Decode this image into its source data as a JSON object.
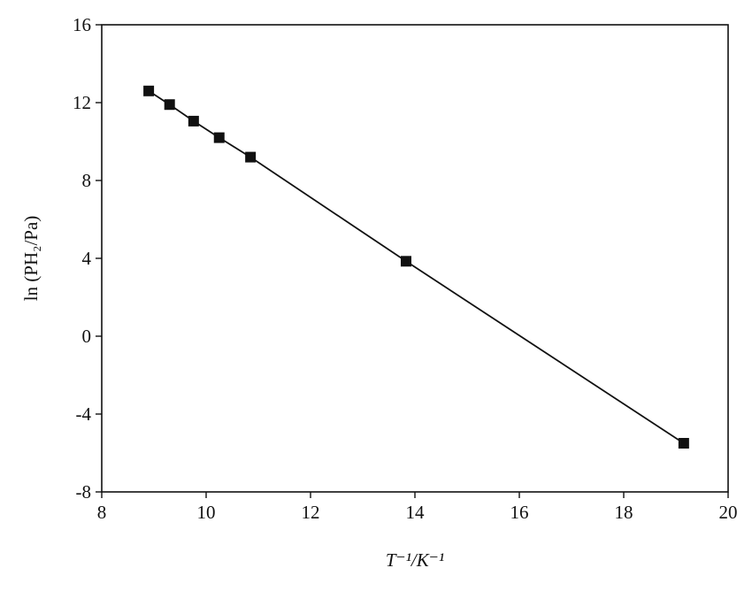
{
  "chart_data": {
    "type": "scatter",
    "xlabel": "T⁻¹/K⁻¹",
    "ylabel": "ln (PH₂/Pa)",
    "x": [
      8.9,
      9.3,
      9.76,
      10.25,
      10.85,
      13.83,
      19.15
    ],
    "series": [
      {
        "color": "#111111",
        "values": [
          12.6,
          11.9,
          11.05,
          10.2,
          9.2,
          3.85,
          -5.5
        ]
      }
    ],
    "fit_line": true,
    "xlim": [
      8,
      20
    ],
    "xticks": [
      8,
      10,
      12,
      14,
      16,
      18,
      20
    ],
    "ylim": [
      -8,
      16
    ],
    "yticks": [
      -8,
      -4,
      0,
      4,
      8,
      12,
      16
    ],
    "grid": false
  }
}
